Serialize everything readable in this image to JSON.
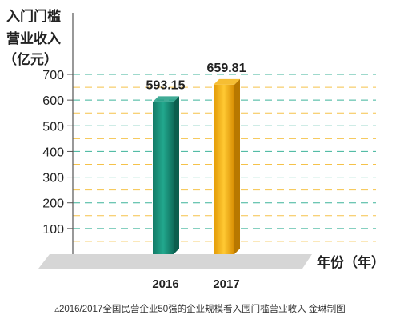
{
  "chart_data": {
    "type": "bar",
    "ylabel_lines": [
      "入门门槛",
      "营业收入",
      "（亿元）"
    ],
    "xlabel": "年份（年）",
    "categories": [
      "2016",
      "2017"
    ],
    "values": [
      593.15,
      659.81
    ],
    "value_labels": [
      "593.15",
      "659.81"
    ],
    "yticks": [
      100,
      200,
      300,
      400,
      500,
      600,
      700
    ],
    "ylim": [
      0,
      720
    ],
    "grid": true,
    "caption": "▵2016/2017全国民营企业50强的企业规模看入围门槛营业收入 金琳制图",
    "colors": {
      "bar_2016": "#1e9c84",
      "bar_2017": "#f5b30f",
      "grid_green": "#3db39a",
      "grid_yellow": "#f5c24a",
      "base": "#d9d9d9"
    }
  }
}
